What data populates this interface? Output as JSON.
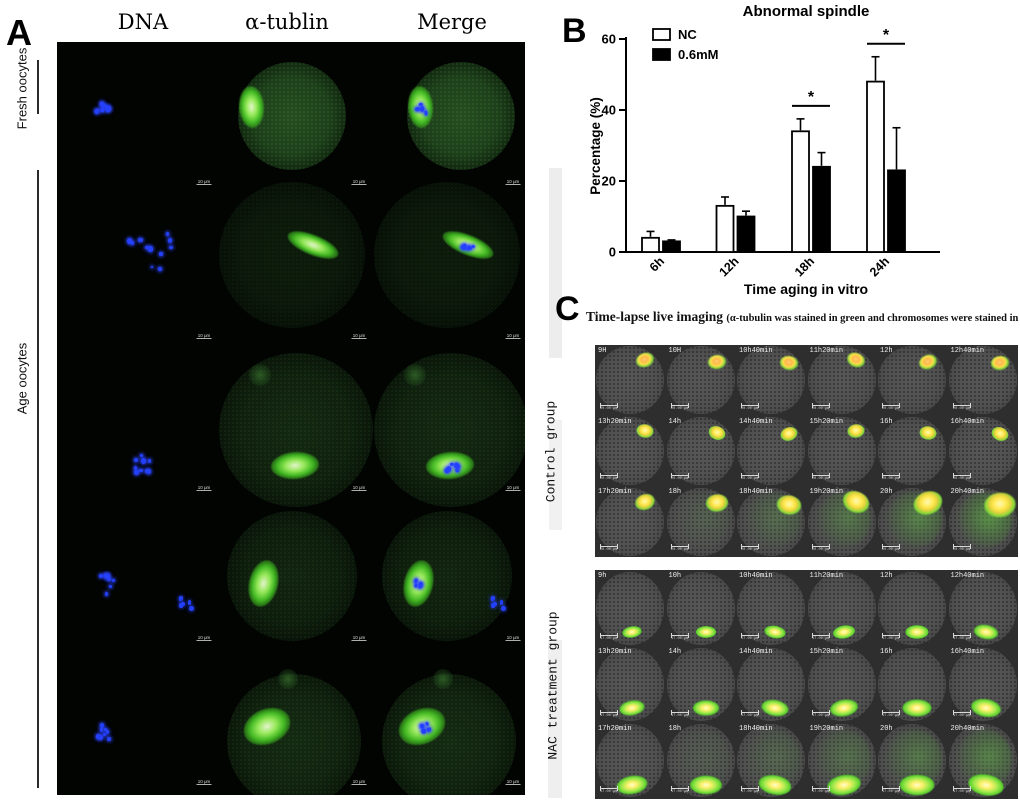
{
  "panelA": {
    "label": "A",
    "columns": [
      "DNA",
      "α-tublin",
      "Merge"
    ],
    "row_labels": [
      "Fresh oocytes",
      "Age oocytes"
    ],
    "scale_bar": "10 μm"
  },
  "panelB": {
    "label": "B"
  },
  "chart_data": {
    "type": "bar",
    "title": "Abnormal spindle",
    "categories": [
      "6h",
      "12h",
      "18h",
      "24h"
    ],
    "series": [
      {
        "name": "NC",
        "fill": "#ffffff",
        "values": [
          4,
          13,
          34,
          48
        ],
        "errors": [
          1.8,
          2.5,
          3.5,
          7
        ]
      },
      {
        "name": "0.6mM",
        "fill": "#000000",
        "values": [
          3,
          10,
          24,
          23
        ],
        "errors": [
          0.4,
          1.5,
          4,
          12
        ]
      }
    ],
    "xlabel": "Time aging in vitro",
    "ylabel": "Percentage (%)",
    "ylim": [
      0,
      60
    ],
    "yticks": [
      0,
      20,
      40,
      60
    ],
    "legend_position": "top-left",
    "significance": [
      {
        "category": "18h",
        "label": "*"
      },
      {
        "category": "24h",
        "label": "*"
      }
    ]
  },
  "panelC": {
    "label": "C",
    "title_main": "Time-lapse live imaging",
    "title_paren": "(α-tubulin was stained in green and chromosomes were stained in blue)",
    "groups": [
      {
        "label": "Control group",
        "scale_bar": "20.00 μm",
        "frames": [
          "9H",
          "10H",
          "10h40min",
          "11h20min",
          "12h",
          "12h40min",
          "13h20min",
          "14h",
          "14h40min",
          "15h20min",
          "16h",
          "16h40min",
          "17h20min",
          "18h",
          "18h40min",
          "19h20min",
          "20h",
          "20h40min"
        ]
      },
      {
        "label": "NAC treatment group",
        "scale_bar": "17.00 μm",
        "frames": [
          "9h",
          "10h",
          "10h40min",
          "11h20min",
          "12h",
          "12h40min",
          "13h20min",
          "14h",
          "14h40min",
          "15h20min",
          "16h",
          "16h40min",
          "17h20min",
          "18h",
          "18h40min",
          "19h20min",
          "20h",
          "20h40min"
        ]
      }
    ]
  },
  "colors": {
    "spindle_green": "#52d42a",
    "chromosome_blue": "#2440ff",
    "signal_yellow": "#ffe84a"
  }
}
